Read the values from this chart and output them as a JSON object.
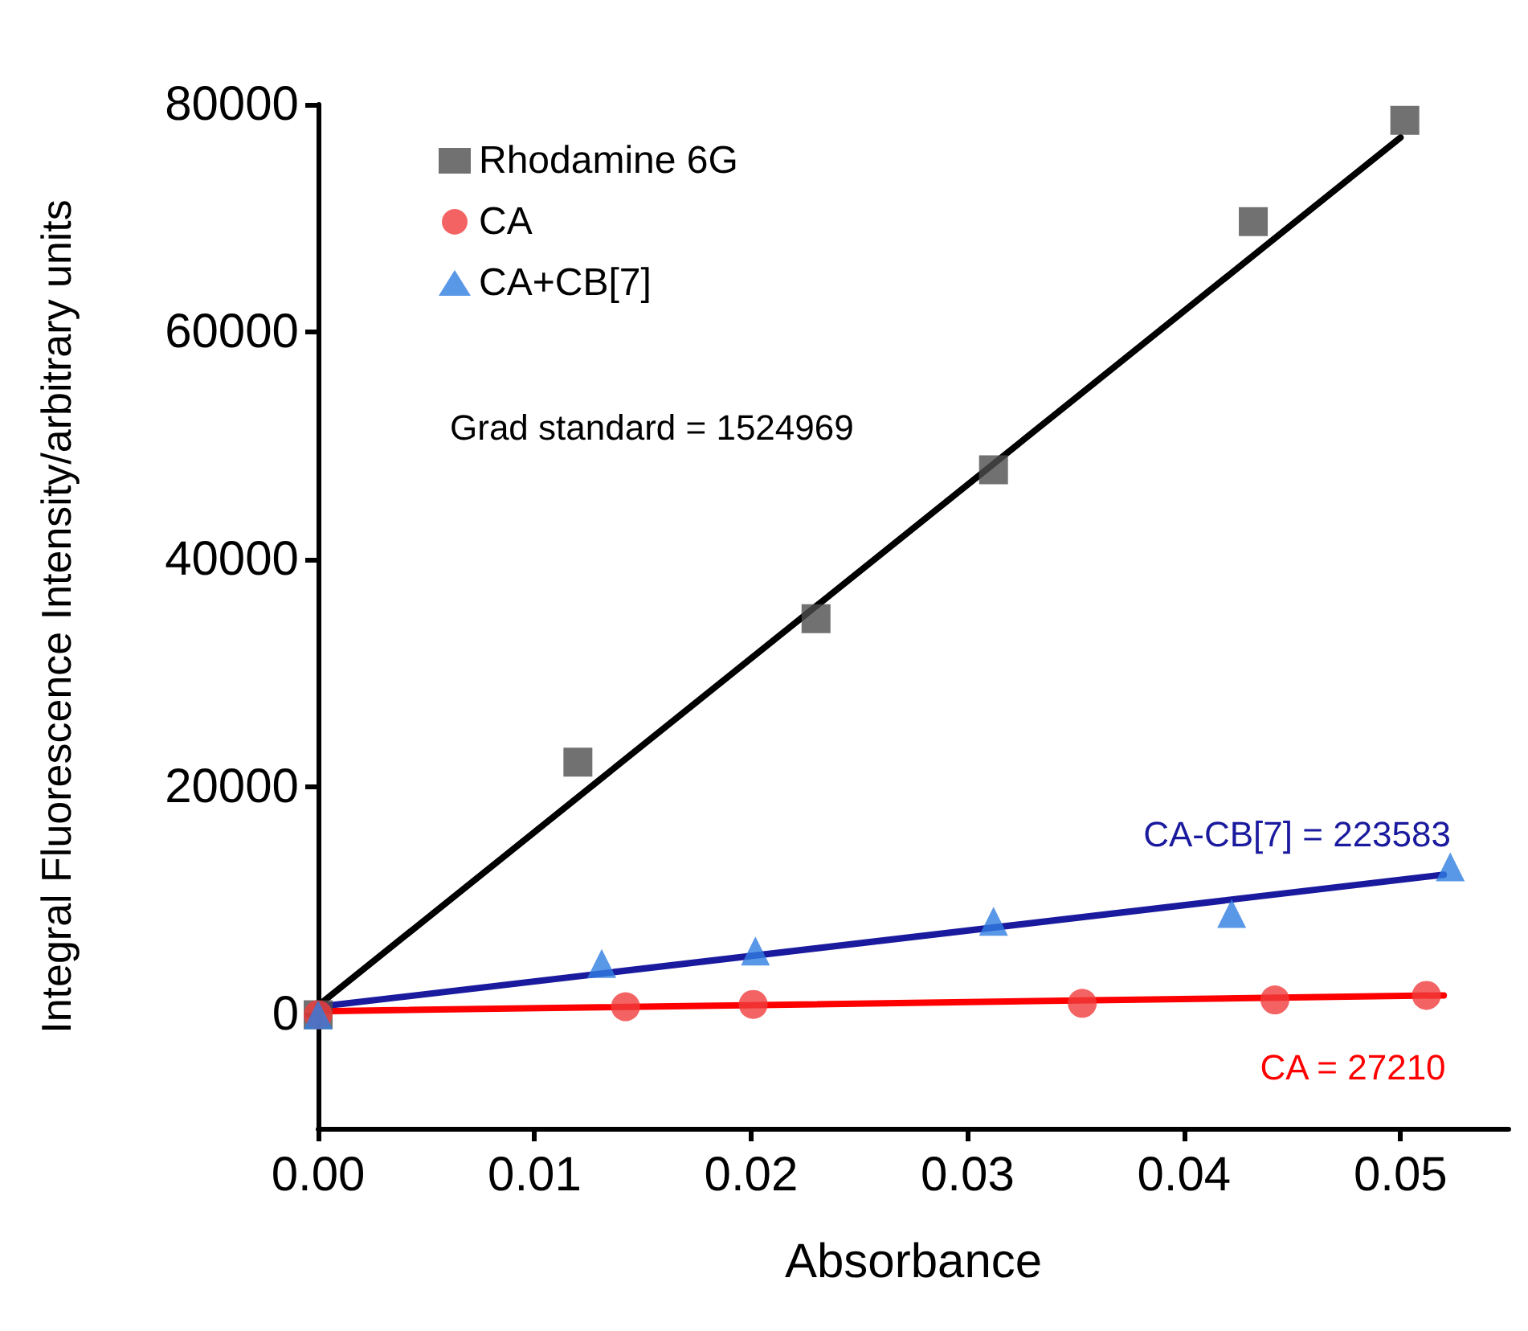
{
  "chart_data": {
    "type": "scatter",
    "xlabel": "Absorbance",
    "ylabel": "Integral Fluorescence Intensity/arbitrary units",
    "xlim": [
      0,
      0.055
    ],
    "xticks": [
      {
        "value": 0,
        "label": "0.00"
      },
      {
        "value": 0.01,
        "label": "0.01"
      },
      {
        "value": 0.02,
        "label": "0.02"
      },
      {
        "value": 0.03,
        "label": "0.03"
      },
      {
        "value": 0.04,
        "label": "0.04"
      },
      {
        "value": 0.05,
        "label": "0.05"
      }
    ],
    "ylim": [
      -10000,
      80000
    ],
    "yticks": [
      0,
      20000,
      40000,
      60000,
      80000
    ],
    "grid": false,
    "legend": "top left",
    "series": [
      {
        "name": "Rhodamine 6G",
        "color": "#4d4d4d",
        "marker": "square",
        "x": [
          0,
          0.012,
          0.023,
          0.0312,
          0.0432,
          0.0502
        ],
        "values": [
          0,
          22200,
          34800,
          47900,
          69700,
          78600
        ]
      },
      {
        "name": "CA",
        "color": "#f03c3c",
        "marker": "circle",
        "x": [
          0,
          0.0142,
          0.0201,
          0.0353,
          0.0442,
          0.0512
        ],
        "values": [
          0,
          700,
          900,
          1000,
          1300,
          1700
        ]
      },
      {
        "name": "CA+CB[7]",
        "color": "#2f7de1",
        "marker": "triangle",
        "x": [
          0,
          0.0131,
          0.0202,
          0.0312,
          0.0422,
          0.0523
        ],
        "values": [
          0,
          4500,
          5600,
          8200,
          8900,
          13000
        ]
      },
      {
        "type": "line",
        "color": "#000000",
        "marker": "none",
        "line_style": "solid",
        "x": [
          0,
          0.05
        ],
        "values": [
          800,
          77100
        ]
      },
      {
        "type": "line",
        "color": "#1a1a9e",
        "marker": "none",
        "line_style": "solid",
        "x": [
          0,
          0.052
        ],
        "values": [
          700,
          12300
        ]
      },
      {
        "type": "line",
        "color": "#ff0000",
        "marker": "none",
        "line_style": "solid",
        "x": [
          0,
          0.052
        ],
        "values": [
          300,
          1700
        ]
      }
    ],
    "annotations": [
      "Grad standard = 1524969",
      "CA-CB[7] = 223583",
      "CA = 27210"
    ]
  }
}
